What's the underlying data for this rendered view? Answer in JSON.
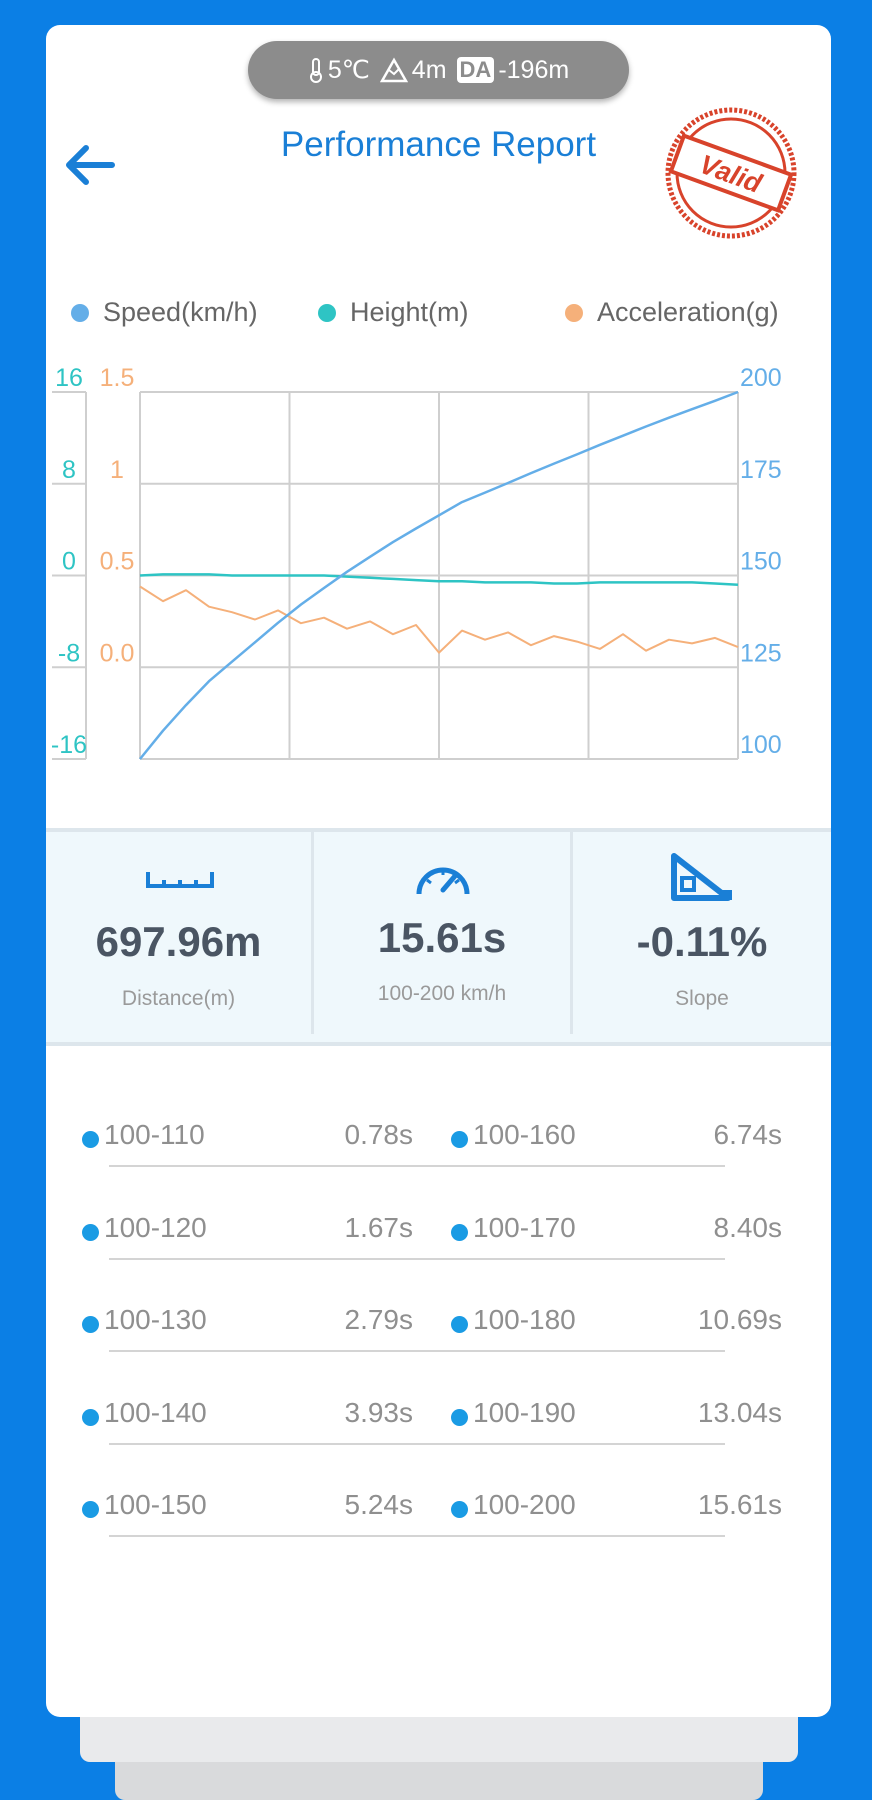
{
  "status": {
    "temperature": "5℃",
    "altitude": "4m",
    "badge": "DA",
    "density_altitude": "-196m"
  },
  "header": {
    "title": "Performance Report",
    "stamp": "Valid"
  },
  "chart_data": {
    "type": "line",
    "categories": [
      null,
      null,
      null,
      null,
      null,
      null,
      null,
      null,
      null,
      null,
      null,
      null,
      null,
      null,
      null,
      null,
      null,
      null,
      null,
      null,
      null,
      null,
      null,
      null,
      null,
      null,
      null
    ],
    "series": [
      {
        "name": "Speed(km/h)",
        "color": "#64aee8",
        "axis": "y2",
        "values": [
          100,
          107.7,
          114.7,
          121.2,
          126.5,
          131.8,
          137.1,
          142.1,
          146.6,
          151.0,
          155.1,
          159.1,
          162.8,
          166.4,
          170,
          172.6,
          175.2,
          177.9,
          180.5,
          183.0,
          185.6,
          188.1,
          190.6,
          193.0,
          195.3,
          197.6,
          200
        ]
      },
      {
        "name": "Height(m)",
        "color": "#2ec4c4",
        "axis": "y",
        "values": [
          0,
          0.1,
          0.1,
          0.1,
          0,
          0,
          0,
          0,
          0,
          -0.1,
          -0.2,
          -0.3,
          -0.4,
          -0.5,
          -0.5,
          -0.6,
          -0.6,
          -0.6,
          -0.7,
          -0.7,
          -0.6,
          -0.6,
          -0.6,
          -0.6,
          -0.6,
          -0.7,
          -0.8
        ]
      },
      {
        "name": "Acceleration(g)",
        "color": "#f5b07a",
        "axis": "y3",
        "values": [
          0.44,
          0.36,
          0.42,
          0.33,
          0.3,
          0.26,
          0.31,
          0.24,
          0.27,
          0.21,
          0.25,
          0.18,
          0.23,
          0.08,
          0.2,
          0.15,
          0.19,
          0.12,
          0.17,
          0.14,
          0.1,
          0.18,
          0.09,
          0.15,
          0.13,
          0.16,
          0.11
        ]
      }
    ],
    "ylim": [
      -16,
      16
    ],
    "yticks": [
      16,
      8,
      0,
      -8,
      -16
    ],
    "y3lim": [
      -0.5,
      1.5
    ],
    "y3ticks": [
      1.5,
      1,
      0.5,
      {
        "value": 0,
        "label": "0.0"
      }
    ],
    "y2lim": [
      100,
      200
    ],
    "y2ticks": [
      200,
      175,
      150,
      125,
      100
    ],
    "grid": true
  },
  "stats": [
    {
      "value": "697.96m",
      "label": "Distance(m)"
    },
    {
      "value": "15.61s",
      "label": "100-200 km/h"
    },
    {
      "value": "-0.11%",
      "label": "Slope"
    }
  ],
  "splits": [
    {
      "range": "100-110",
      "time": "0.78s"
    },
    {
      "range": "100-120",
      "time": "1.67s"
    },
    {
      "range": "100-130",
      "time": "2.79s"
    },
    {
      "range": "100-140",
      "time": "3.93s"
    },
    {
      "range": "100-150",
      "time": "5.24s"
    },
    {
      "range": "100-160",
      "time": "6.74s"
    },
    {
      "range": "100-170",
      "time": "8.40s"
    },
    {
      "range": "100-180",
      "time": "10.69s"
    },
    {
      "range": "100-190",
      "time": "13.04s"
    },
    {
      "range": "100-200",
      "time": "15.61s"
    }
  ]
}
